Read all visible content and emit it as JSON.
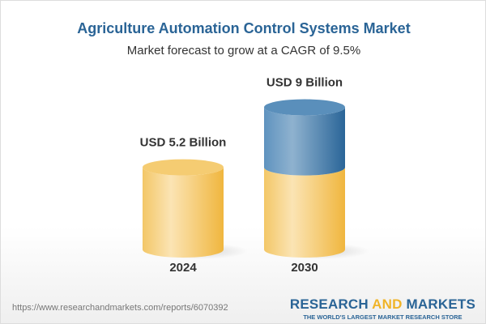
{
  "title": "Agriculture Automation Control Systems Market",
  "subtitle": "Market forecast to grow at a CAGR of 9.5%",
  "chart_data": {
    "type": "bar",
    "style": "3d-cylinder",
    "categories": [
      "2024",
      "2030"
    ],
    "values": [
      5.2,
      9
    ],
    "data_labels": [
      "USD 5.2 Billion",
      "USD 9 Billion"
    ],
    "unit": "USD Billion",
    "colors": {
      "base": "#f3c45a",
      "growth": "#3f7cab"
    }
  },
  "footer": {
    "url": "https://www.researchandmarkets.com/reports/6070392",
    "logo_part1": "RESEARCH ",
    "logo_part2": "AND",
    "logo_part3": " MARKETS",
    "tagline": "THE WORLD'S LARGEST MARKET RESEARCH STORE"
  }
}
